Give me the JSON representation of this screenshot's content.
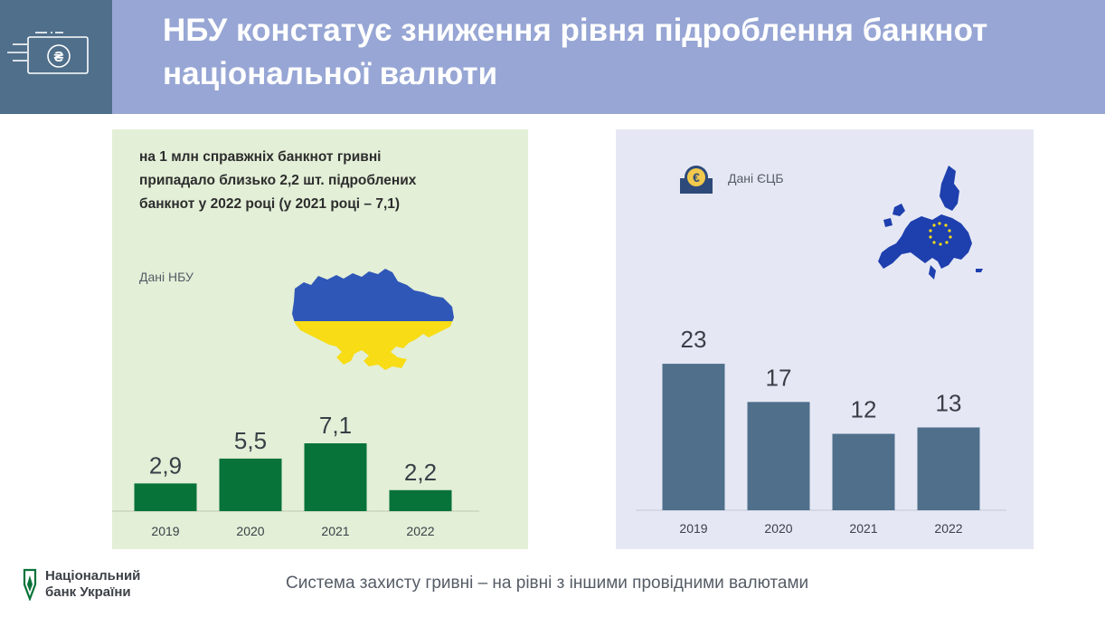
{
  "header": {
    "title_line1": "НБУ констатує зниження рівня підроблення банкнот",
    "title_line2": "національної валюти",
    "icon": "hryvnia-banknote-icon"
  },
  "left_panel": {
    "description": [
      "на 1 млн справжніх банкнот гривні",
      "припадало близько 2,2 шт. підроблених",
      "банкнот у 2022 році (у 2021 році – 7,1)"
    ],
    "source": "Дані НБУ",
    "map_icon": "ukraine-map-icon"
  },
  "right_panel": {
    "source": "Дані ЄЦБ",
    "source_icon": "ecb-euro-icon",
    "map_icon": "eu-map-icon"
  },
  "footer": {
    "text": "Система захисту гривні – на рівні з іншими провідними валютами",
    "logo_line1": "Національний",
    "logo_line2": "банк України"
  },
  "colors": {
    "header_icon_bg": "#4f6f8b",
    "header_title_bg": "#97a6d4",
    "ua_bar": "#087339",
    "eu_bar": "#4f6f8b",
    "ua_blue": "#2f57b8",
    "ua_yellow": "#f7dc16",
    "eu_blue": "#1e3fae"
  },
  "chart_data": [
    {
      "type": "bar",
      "categories": [
        "2019",
        "2020",
        "2021",
        "2022"
      ],
      "values": [
        2.9,
        5.5,
        7.1,
        2.2
      ],
      "value_labels": [
        "2,9",
        "5,5",
        "7,1",
        "2,2"
      ],
      "ylim": [
        0,
        8
      ]
    },
    {
      "type": "bar",
      "categories": [
        "2019",
        "2020",
        "2021",
        "2022"
      ],
      "values": [
        23,
        17,
        12,
        13
      ],
      "value_labels": [
        "23",
        "17",
        "12",
        "13"
      ],
      "ylim": [
        0,
        25
      ]
    }
  ]
}
